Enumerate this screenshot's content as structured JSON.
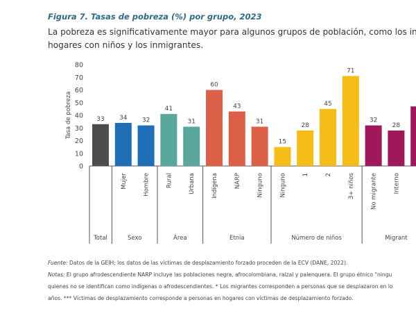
{
  "figure_title": "Figura 7.  Tasas de pobreza (%) por grupo, 2023",
  "subtitle_lines": [
    "La pobreza es significativamente mayor para algunos grupos de población, como los indíge",
    "hogares con niños y los inmigrantes."
  ],
  "chart_data": {
    "type": "bar",
    "ylabel": "Tasa de pobreza",
    "ylim": [
      0,
      80
    ],
    "yticks": [
      0,
      10,
      20,
      30,
      40,
      50,
      60,
      70,
      80
    ],
    "grid": false,
    "groups": [
      {
        "name": "Total",
        "color": "#4d4d4f",
        "bars": [
          {
            "label": "",
            "value": 33
          }
        ]
      },
      {
        "name": "Sexo",
        "color": "#1f6fb6",
        "bars": [
          {
            "label": "Mujer",
            "value": 34
          },
          {
            "label": "Hombre",
            "value": 32
          }
        ]
      },
      {
        "name": "Área",
        "color": "#5aa89c",
        "bars": [
          {
            "label": "Rural",
            "value": 41
          },
          {
            "label": "Urbana",
            "value": 31
          }
        ]
      },
      {
        "name": "Etnia",
        "color": "#dc5f47",
        "bars": [
          {
            "label": "Indígena",
            "value": 60
          },
          {
            "label": "NARP",
            "value": 43
          },
          {
            "label": "Ninguno",
            "value": 31
          }
        ]
      },
      {
        "name": "Número de niños",
        "color": "#f7bd17",
        "bars": [
          {
            "label": "Ninguno",
            "value": 15
          },
          {
            "label": "1",
            "value": 28
          },
          {
            "label": "2",
            "value": 45
          },
          {
            "label": "3+ niños",
            "value": 71
          }
        ]
      },
      {
        "name": "Migrant",
        "color": "#a0185a",
        "bars": [
          {
            "label": "No migrante",
            "value": 32
          },
          {
            "label": "Interno",
            "value": 28
          },
          {
            "label": "",
            "value": 47,
            "value_label_hidden": true
          }
        ]
      }
    ]
  },
  "notes": {
    "source_label": "Fuente:",
    "source_text": " Datos de la GEIH; los datos de las víctimas de desplazamiento forzado proceden de la ECV (DANE, 2022).",
    "notes_label": "Notas:",
    "notes_line1": " El grupo afrodescendiente NARP incluye las poblaciones negra, afrocolombiana, raizal y palenquera. El grupo étnico \"ningu",
    "notes_line2": "quienes no se identifican como indígenas o afrodescendientes. * Los migrantes corresponden a personas que se desplazaron en lo",
    "notes_line3": "años. *** Víctimas de desplazamiento corresponde a personas en hogares con víctimas de desplazamiento forzado."
  }
}
